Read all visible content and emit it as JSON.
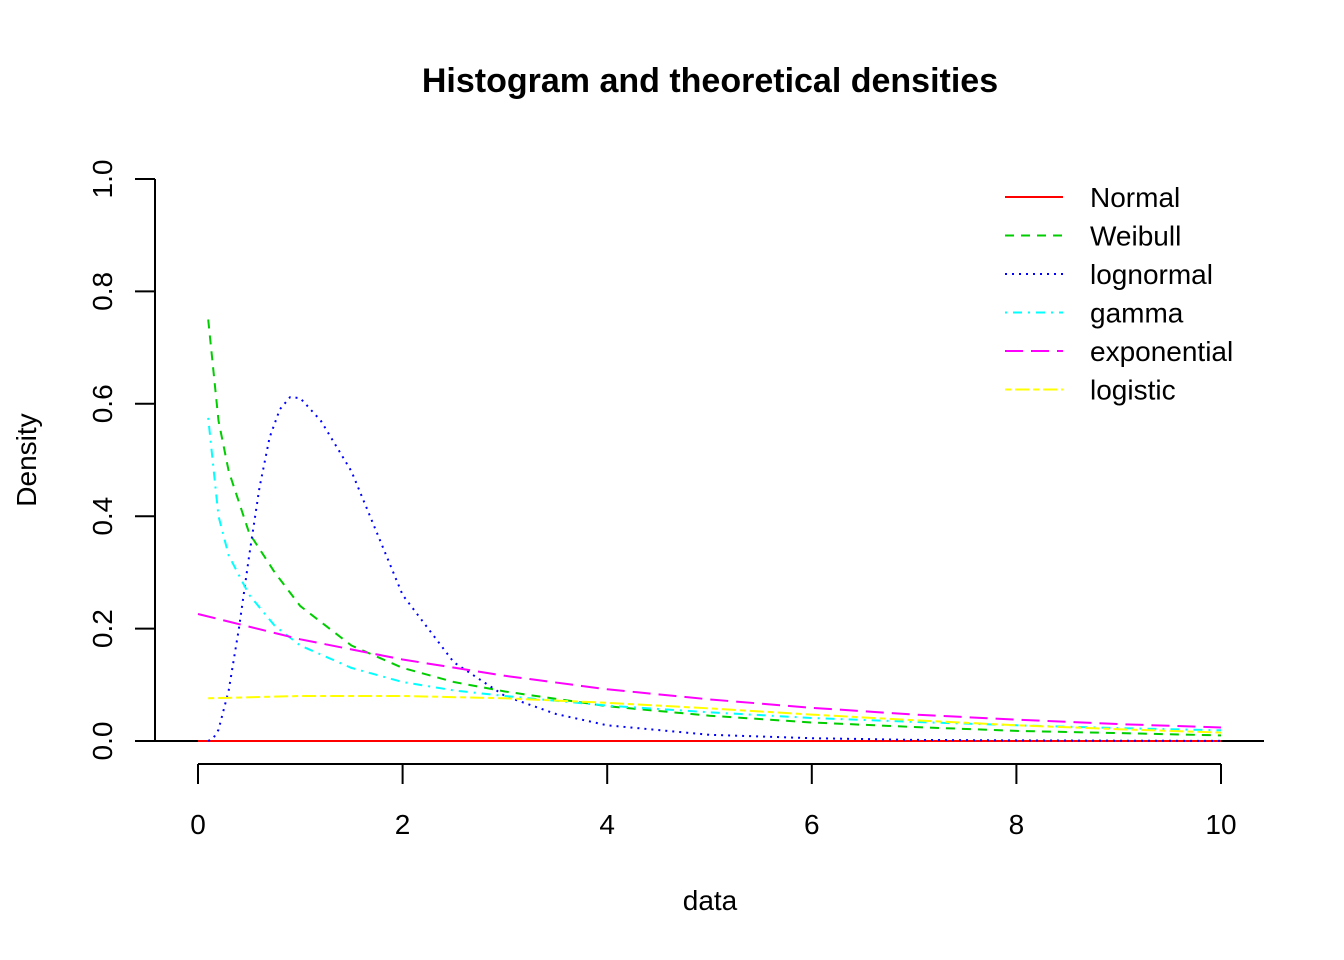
{
  "chart_data": {
    "type": "line",
    "title": "Histogram and theoretical densities",
    "xlabel": "data",
    "ylabel": "Density",
    "xlim": [
      0,
      10
    ],
    "ylim": [
      0,
      1
    ],
    "x_ticks": [
      0,
      2,
      4,
      6,
      8,
      10
    ],
    "y_ticks": [
      0.0,
      0.2,
      0.4,
      0.6,
      0.8,
      1.0
    ],
    "x_tick_labels": [
      "0",
      "2",
      "4",
      "6",
      "8",
      "10"
    ],
    "y_tick_labels": [
      "0.0",
      "0.2",
      "0.4",
      "0.6",
      "0.8",
      "1.0"
    ],
    "grid": false,
    "legend_position": "top-right",
    "series": [
      {
        "name": "Normal",
        "color": "#FF0000",
        "line_style": "solid",
        "x": [
          0,
          1,
          2,
          3,
          4,
          5,
          6,
          7,
          8,
          9,
          10
        ],
        "y": [
          0,
          0,
          0,
          0,
          0,
          0,
          0,
          0,
          0,
          0,
          0
        ]
      },
      {
        "name": "Weibull",
        "color": "#00CD00",
        "line_style": "dashed",
        "x": [
          0.1,
          0.2,
          0.3,
          0.5,
          0.75,
          1.0,
          1.5,
          2.0,
          2.5,
          3.0,
          4.0,
          5.0,
          6.0,
          7.0,
          8.0,
          9.0,
          10.0
        ],
        "y": [
          0.75,
          0.57,
          0.48,
          0.37,
          0.3,
          0.24,
          0.17,
          0.13,
          0.105,
          0.088,
          0.062,
          0.045,
          0.033,
          0.025,
          0.018,
          0.014,
          0.01
        ]
      },
      {
        "name": "lognormal",
        "color": "#0000FF",
        "line_style": "dotted",
        "x": [
          0.1,
          0.15,
          0.2,
          0.3,
          0.4,
          0.5,
          0.6,
          0.7,
          0.8,
          0.9,
          1.0,
          1.2,
          1.5,
          2.0,
          2.5,
          3.0,
          3.5,
          4.0,
          5.0,
          6.0,
          7.0,
          8.0,
          9.0,
          10.0
        ],
        "y": [
          0.0,
          0.005,
          0.02,
          0.09,
          0.2,
          0.33,
          0.45,
          0.54,
          0.59,
          0.612,
          0.61,
          0.57,
          0.48,
          0.26,
          0.14,
          0.08,
          0.048,
          0.028,
          0.011,
          0.005,
          0.002,
          0.001,
          0.0005,
          0.0002
        ]
      },
      {
        "name": "gamma",
        "color": "#00FFFF",
        "line_style": "dotdash",
        "x": [
          0.1,
          0.2,
          0.3,
          0.5,
          0.75,
          1.0,
          1.5,
          2.0,
          2.5,
          3.0,
          4.0,
          5.0,
          6.0,
          7.0,
          8.0,
          9.0,
          10.0
        ],
        "y": [
          0.575,
          0.4,
          0.33,
          0.26,
          0.205,
          0.17,
          0.13,
          0.105,
          0.09,
          0.08,
          0.063,
          0.051,
          0.041,
          0.034,
          0.028,
          0.023,
          0.019
        ]
      },
      {
        "name": "exponential",
        "color": "#FF00FF",
        "line_style": "longdash",
        "x": [
          0,
          1,
          2,
          3,
          4,
          5,
          6,
          7,
          8,
          9,
          10
        ],
        "y": [
          0.226,
          0.181,
          0.145,
          0.116,
          0.092,
          0.074,
          0.059,
          0.047,
          0.038,
          0.03,
          0.024
        ]
      },
      {
        "name": "logistic",
        "color": "#FFFF00",
        "line_style": "twodash",
        "x": [
          0.1,
          1,
          2,
          3,
          4,
          5,
          6,
          7,
          8,
          9,
          10
        ],
        "y": [
          0.076,
          0.08,
          0.08,
          0.076,
          0.068,
          0.058,
          0.047,
          0.037,
          0.028,
          0.021,
          0.015
        ]
      }
    ]
  }
}
